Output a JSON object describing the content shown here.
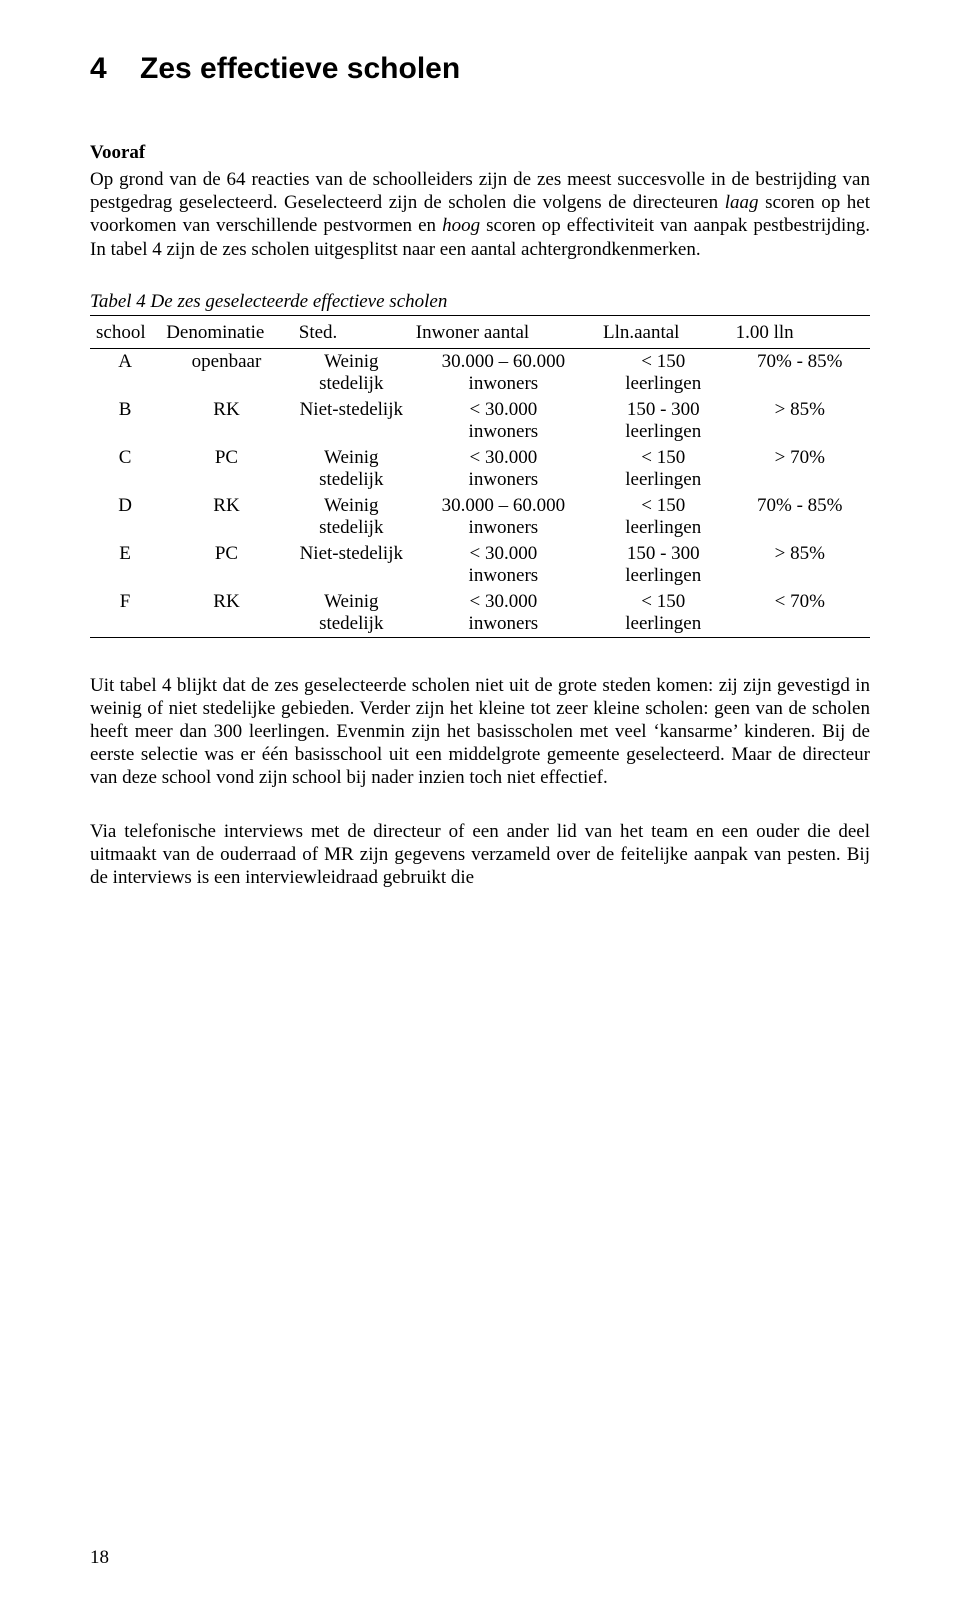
{
  "chapter": {
    "number": "4",
    "title": "Zes effectieve scholen"
  },
  "section_head": "Vooraf",
  "para1": "Op grond van de 64 reacties van de schoolleiders zijn de zes meest succesvolle in de bestrijding van pestgedrag geselecteerd.",
  "para2": "Geselecteerd zijn de scholen die volgens de directeuren laag scoren op het voorkomen van verschillende pestvormen en hoog scoren op effectiviteit van aanpak pestbestrijding.",
  "para3": "In tabel 4 zijn de zes scholen uitgesplitst naar een aantal achtergrondkenmerken.",
  "table": {
    "type": "table",
    "caption": "Tabel 4  De zes geselecteerde effectieve scholen",
    "border_color": "#000000",
    "background_color": "#ffffff",
    "font_size_pt": 14,
    "columns": [
      {
        "key": "school",
        "label": "school",
        "align": "center"
      },
      {
        "key": "denominatie",
        "label": "Denominatie",
        "align": "center"
      },
      {
        "key": "sted",
        "label": "Sted.",
        "align": "center"
      },
      {
        "key": "inwoner",
        "label": "Inwoner aantal",
        "align": "center"
      },
      {
        "key": "lln",
        "label": "Lln.aantal",
        "align": "center"
      },
      {
        "key": "pct",
        "label": "1.00 lln",
        "align": "center"
      }
    ],
    "rows": [
      {
        "school": "A",
        "denominatie": "openbaar",
        "sted": "Weinig stedelijk",
        "inwoner": "30.000 – 60.000 inwoners",
        "lln": "< 150 leerlingen",
        "pct": "70% - 85%"
      },
      {
        "school": "B",
        "denominatie": "RK",
        "sted": "Niet-stedelijk",
        "inwoner": "< 30.000 inwoners",
        "lln": "150 - 300 leerlingen",
        "pct": "> 85%"
      },
      {
        "school": "C",
        "denominatie": "PC",
        "sted": "Weinig stedelijk",
        "inwoner": "< 30.000 inwoners",
        "lln": "< 150 leerlingen",
        "pct": "> 70%"
      },
      {
        "school": "D",
        "denominatie": "RK",
        "sted": "Weinig stedelijk",
        "inwoner": "30.000 – 60.000 inwoners",
        "lln": "< 150 leerlingen",
        "pct": "70% - 85%"
      },
      {
        "school": "E",
        "denominatie": "PC",
        "sted": "Niet-stedelijk",
        "inwoner": "< 30.000 inwoners",
        "lln": "150 - 300 leerlingen",
        "pct": "> 85%"
      },
      {
        "school": "F",
        "denominatie": "RK",
        "sted": "Weinig stedelijk",
        "inwoner": "< 30.000 inwoners",
        "lln": "< 150 leerlingen",
        "pct": "< 70%"
      }
    ]
  },
  "para4": "Uit tabel 4 blijkt dat de zes geselecteerde scholen niet uit de grote steden komen: zij zijn gevestigd in weinig of niet stedelijke gebieden. Verder zijn het kleine tot zeer kleine scholen: geen van de scholen heeft meer dan 300 leerlingen. Evenmin zijn het basisscholen met veel ‘kansarme’ kinderen. Bij de eerste selectie was er één basisschool uit een middelgrote gemeente geselecteerd. Maar de directeur van deze school vond zijn school bij nader inzien toch niet effectief.",
  "para5": "Via telefonische interviews met de directeur of een ander lid van het team en een ouder die deel uitmaakt van de ouderraad of MR zijn gegevens verzameld over de feitelijke aanpak van pesten. Bij de interviews is een interviewleidraad gebruikt die",
  "page_number": "18"
}
